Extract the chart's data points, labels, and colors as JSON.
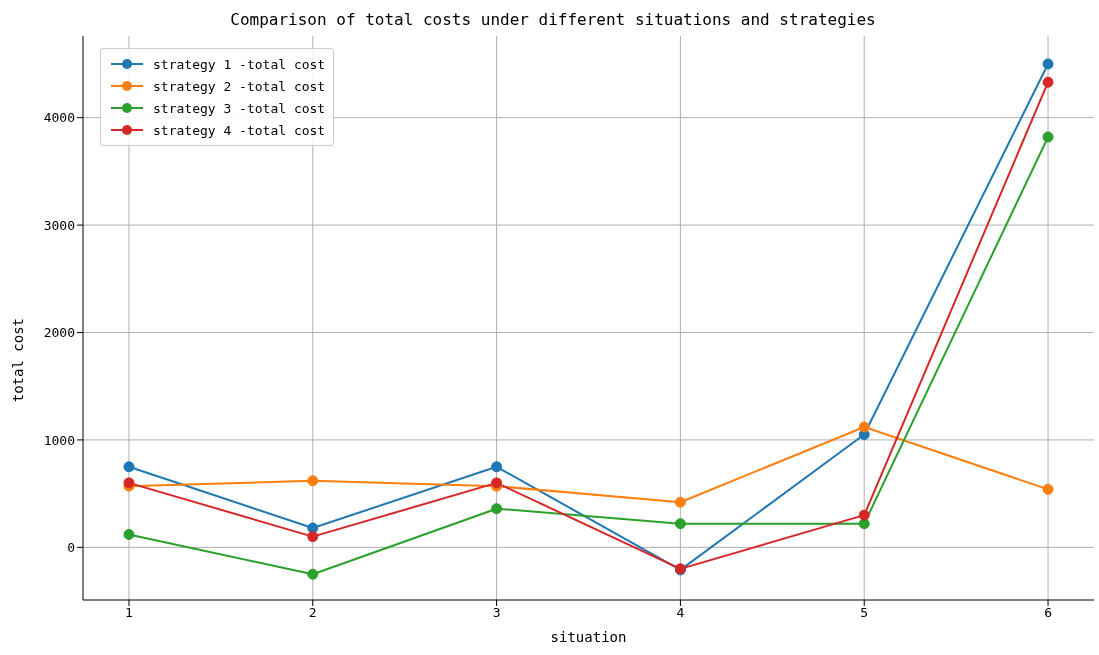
{
  "chart_data": {
    "type": "line",
    "title": "Comparison of total costs under different situations and strategies",
    "xlabel": "situation",
    "ylabel": "total cost",
    "x": [
      1,
      2,
      3,
      4,
      5,
      6
    ],
    "series": [
      {
        "name": "strategy 1 -total cost",
        "color": "#1f77b4",
        "values": [
          750,
          180,
          750,
          -210,
          1050,
          4500
        ]
      },
      {
        "name": "strategy 2 -total cost",
        "color": "#ff7f0e",
        "values": [
          570,
          620,
          570,
          420,
          1120,
          540
        ]
      },
      {
        "name": "strategy 3 -total cost",
        "color": "#2ca02c",
        "values": [
          120,
          -250,
          360,
          220,
          220,
          3820
        ]
      },
      {
        "name": "strategy 4 -total cost",
        "color": "#d62728",
        "values": [
          600,
          100,
          600,
          -200,
          300,
          4330
        ]
      }
    ],
    "xlim": [
      0.75,
      6.25
    ],
    "xticks": [
      1,
      2,
      3,
      4,
      5,
      6
    ],
    "ylim": [
      -490,
      4760
    ],
    "yticks": [
      0,
      1000,
      2000,
      3000,
      4000
    ],
    "grid": true,
    "legend": "top left",
    "marker": "circle",
    "line_style": "solid"
  }
}
